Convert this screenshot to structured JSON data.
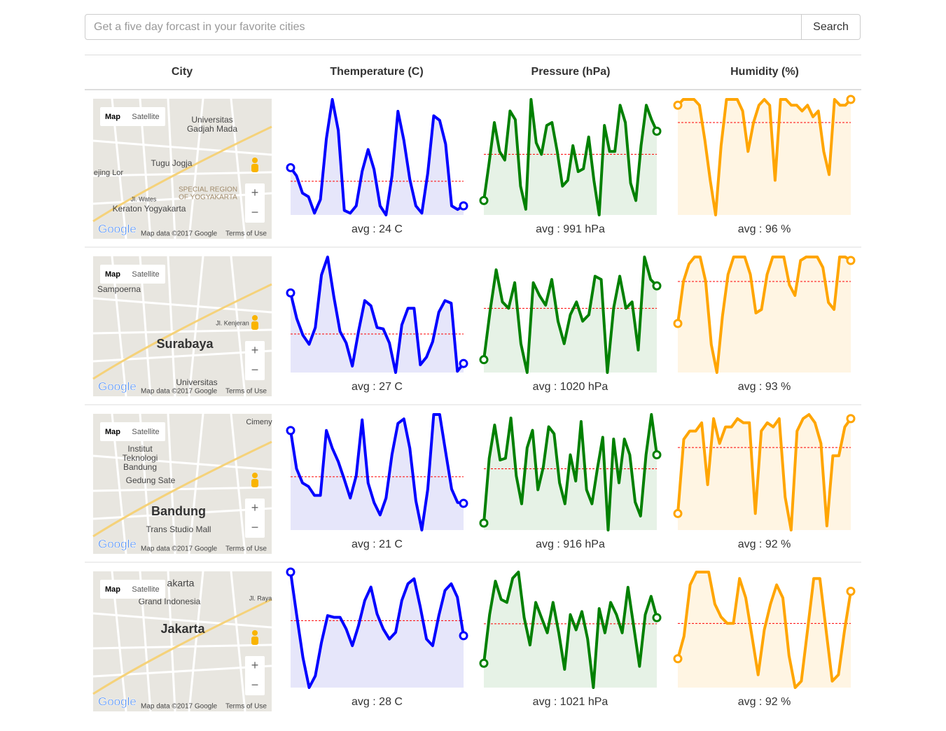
{
  "search": {
    "placeholder": "Get a five day forcast in your favorite cities",
    "button": "Search"
  },
  "table": {
    "headers": [
      "City",
      "Themperature (C)",
      "Pressure (hPa)",
      "Humidity (%)"
    ],
    "map_controls": {
      "map": "Map",
      "satellite": "Satellite",
      "zoom_in": "+",
      "zoom_out": "−",
      "logo": "Google",
      "attribution": "Map data ©2017 Google",
      "terms": "Terms of Use"
    },
    "rows": [
      {
        "map_labels": [
          "Universitas",
          "Gadjah Mada",
          "Tugu Jogja",
          "SPECIAL REGION",
          "OF YOGYAKARTA",
          "Keraton Yogyakarta",
          "ejing Lor",
          "Jl. Wates"
        ],
        "charts": [
          {
            "type": "line",
            "color": "#0000ff",
            "fill": "#e6e6fa",
            "values": [
              25.5,
              24.6,
              22.7,
              22.3,
              20.5,
              22,
              28.7,
              33,
              29.6,
              20.8,
              20.5,
              21.3,
              25.1,
              27.5,
              25.3,
              21.3,
              20.3,
              24.6,
              31.7,
              28.5,
              24.2,
              21.3,
              20.5,
              24.9,
              31.2,
              30.7,
              28.1,
              21.3,
              20.9,
              21.3
            ],
            "avg": {
              "value": 24,
              "label": "avg : 24 C"
            }
          },
          {
            "type": "line",
            "color": "#008000",
            "fill": "#e6f2e6",
            "values": [
              975,
              988,
              1002,
              992,
              989,
              1006,
              1003,
              980,
              972,
              1010,
              995,
              991,
              1001,
              1002,
              992,
              980,
              982,
              994,
              985,
              986,
              997,
              982,
              970,
              1001,
              992,
              992,
              1008,
              1002,
              981,
              975,
              994,
              1008,
              1003,
              999
            ],
            "avg": {
              "value": 991,
              "label": "avg : 991 hPa"
            }
          },
          {
            "type": "line",
            "color": "#ffa500",
            "fill": "#fff5e3",
            "values": [
              99,
              100,
              100,
              100,
              99,
              93,
              86,
              80,
              92,
              100,
              100,
              100,
              98,
              91,
              96,
              99,
              100,
              99,
              86,
              100,
              100,
              99,
              99,
              98,
              99,
              97,
              98,
              91,
              87,
              100,
              99,
              99,
              100
            ],
            "avg": {
              "value": 96,
              "label": "avg : 96 %"
            }
          }
        ]
      },
      {
        "map_labels": [
          "Sampoerna",
          "Surabaya",
          "Universitas",
          "Jl. Kenjeran"
        ],
        "charts": [
          {
            "type": "line",
            "color": "#0000ff",
            "fill": "#e6e6fa",
            "values": [
              30.2,
              28.2,
              26.9,
              26.2,
              27.5,
              31.6,
              33,
              29.9,
              27.2,
              26.3,
              24.5,
              27.2,
              29.6,
              29.2,
              27.5,
              27.4,
              26.3,
              24,
              27.7,
              29,
              29,
              24.6,
              25.2,
              26.4,
              28.7,
              29.6,
              29.4,
              24.1,
              24.7
            ],
            "avg": {
              "value": 27,
              "label": "avg : 27 C"
            }
          },
          {
            "type": "line",
            "color": "#008000",
            "fill": "#e6f2e6",
            "values": [
              1004,
              1019,
              1032,
              1022,
              1020,
              1028,
              1009,
              1000,
              1028,
              1024,
              1021,
              1029,
              1016,
              1009,
              1018,
              1022,
              1016,
              1018,
              1030,
              1029,
              1000,
              1020,
              1030,
              1020,
              1022,
              1007,
              1036,
              1029,
              1027
            ],
            "avg": {
              "value": 1020,
              "label": "avg : 1020 hPa"
            }
          },
          {
            "type": "line",
            "color": "#ffa500",
            "fill": "#fff5e3",
            "values": [
              81,
              93,
              98,
              100,
              100,
              93,
              75,
              67,
              83,
              95,
              100,
              100,
              100,
              95,
              84,
              85,
              95,
              100,
              100,
              100,
              92,
              89,
              99,
              100,
              100,
              100,
              97,
              87,
              85,
              100,
              100,
              99
            ],
            "avg": {
              "value": 93,
              "label": "avg : 93 %"
            }
          }
        ]
      },
      {
        "map_labels": [
          "Institut",
          "Teknologi",
          "Bandung",
          "Gedung Sate",
          "Bandung",
          "Trans Studio Mall",
          "Cimeny"
        ],
        "charts": [
          {
            "type": "line",
            "color": "#0000ff",
            "fill": "#e6e6fa",
            "values": [
              26.2,
              21.9,
              20.3,
              19.9,
              18.9,
              18.9,
              26.2,
              24.2,
              22.7,
              20.7,
              18.6,
              21.1,
              27.4,
              20.3,
              18.1,
              16.7,
              18.6,
              23.5,
              27,
              27.5,
              24.2,
              18.3,
              15,
              19.6,
              28,
              28,
              23.8,
              19.6,
              18.1,
              18
            ],
            "avg": {
              "value": 21,
              "label": "avg : 21 C"
            }
          },
          {
            "type": "line",
            "color": "#008000",
            "fill": "#e6f2e6",
            "values": [
              885,
              922,
              941,
              921,
              922,
              945,
              912,
              896,
              928,
              938,
              904,
              917,
              940,
              936,
              908,
              896,
              924,
              909,
              943,
              904,
              896,
              916,
              934,
              881,
              933,
              908,
              933,
              924,
              897,
              889,
              924,
              947,
              924
            ],
            "avg": {
              "value": 916,
              "label": "avg : 916 hPa"
            }
          },
          {
            "type": "line",
            "color": "#ffa500",
            "fill": "#fff5e3",
            "values": [
              76,
              94,
              96,
              96,
              98,
              83,
              99,
              93,
              97,
              97,
              99,
              98,
              98,
              76,
              96,
              98,
              97,
              99,
              80,
              72,
              96,
              99,
              100,
              98,
              93,
              73,
              90,
              90,
              97,
              99
            ],
            "avg": {
              "value": 92,
              "label": "avg : 92 %"
            }
          }
        ]
      },
      {
        "map_labels": [
          "akarta",
          "Grand Indonesia",
          "Jakarta",
          "Jl. Raya"
        ],
        "charts": [
          {
            "type": "line",
            "color": "#0000ff",
            "fill": "#e6e6fa",
            "values": [
              30.9,
              28.3,
              25.8,
              24,
              24.7,
              26.7,
              28.3,
              28.2,
              28.2,
              27.5,
              26.5,
              27.7,
              29.2,
              30,
              28.4,
              27.5,
              26.9,
              27.3,
              29.2,
              30.2,
              30.5,
              28.8,
              26.9,
              26.5,
              28.3,
              29.8,
              30.2,
              29.4,
              27.1
            ],
            "avg": {
              "value": 28,
              "label": "avg : 28 C"
            }
          },
          {
            "type": "line",
            "color": "#008000",
            "fill": "#e6f2e6",
            "values": [
              1008,
              1024,
              1035,
              1029,
              1028,
              1036,
              1038,
              1023,
              1014,
              1028,
              1023,
              1018,
              1028,
              1018,
              1006,
              1024,
              1019,
              1025,
              1016,
              1000,
              1026,
              1018,
              1028,
              1024,
              1018,
              1033,
              1020,
              1007,
              1024,
              1030,
              1023
            ],
            "avg": {
              "value": 1021,
              "label": "avg : 1021 hPa"
            }
          },
          {
            "type": "line",
            "color": "#ffa500",
            "fill": "#fff5e3",
            "values": [
              86.5,
              90,
              98,
              100,
              100,
              100,
              95,
              93,
              92,
              92,
              99,
              96,
              90,
              84,
              91,
              95,
              98,
              96,
              87,
              82,
              83,
              91,
              99,
              99,
              91,
              83,
              84,
              91,
              97
            ],
            "avg": {
              "value": 92,
              "label": "avg : 92 %"
            }
          }
        ]
      }
    ]
  }
}
